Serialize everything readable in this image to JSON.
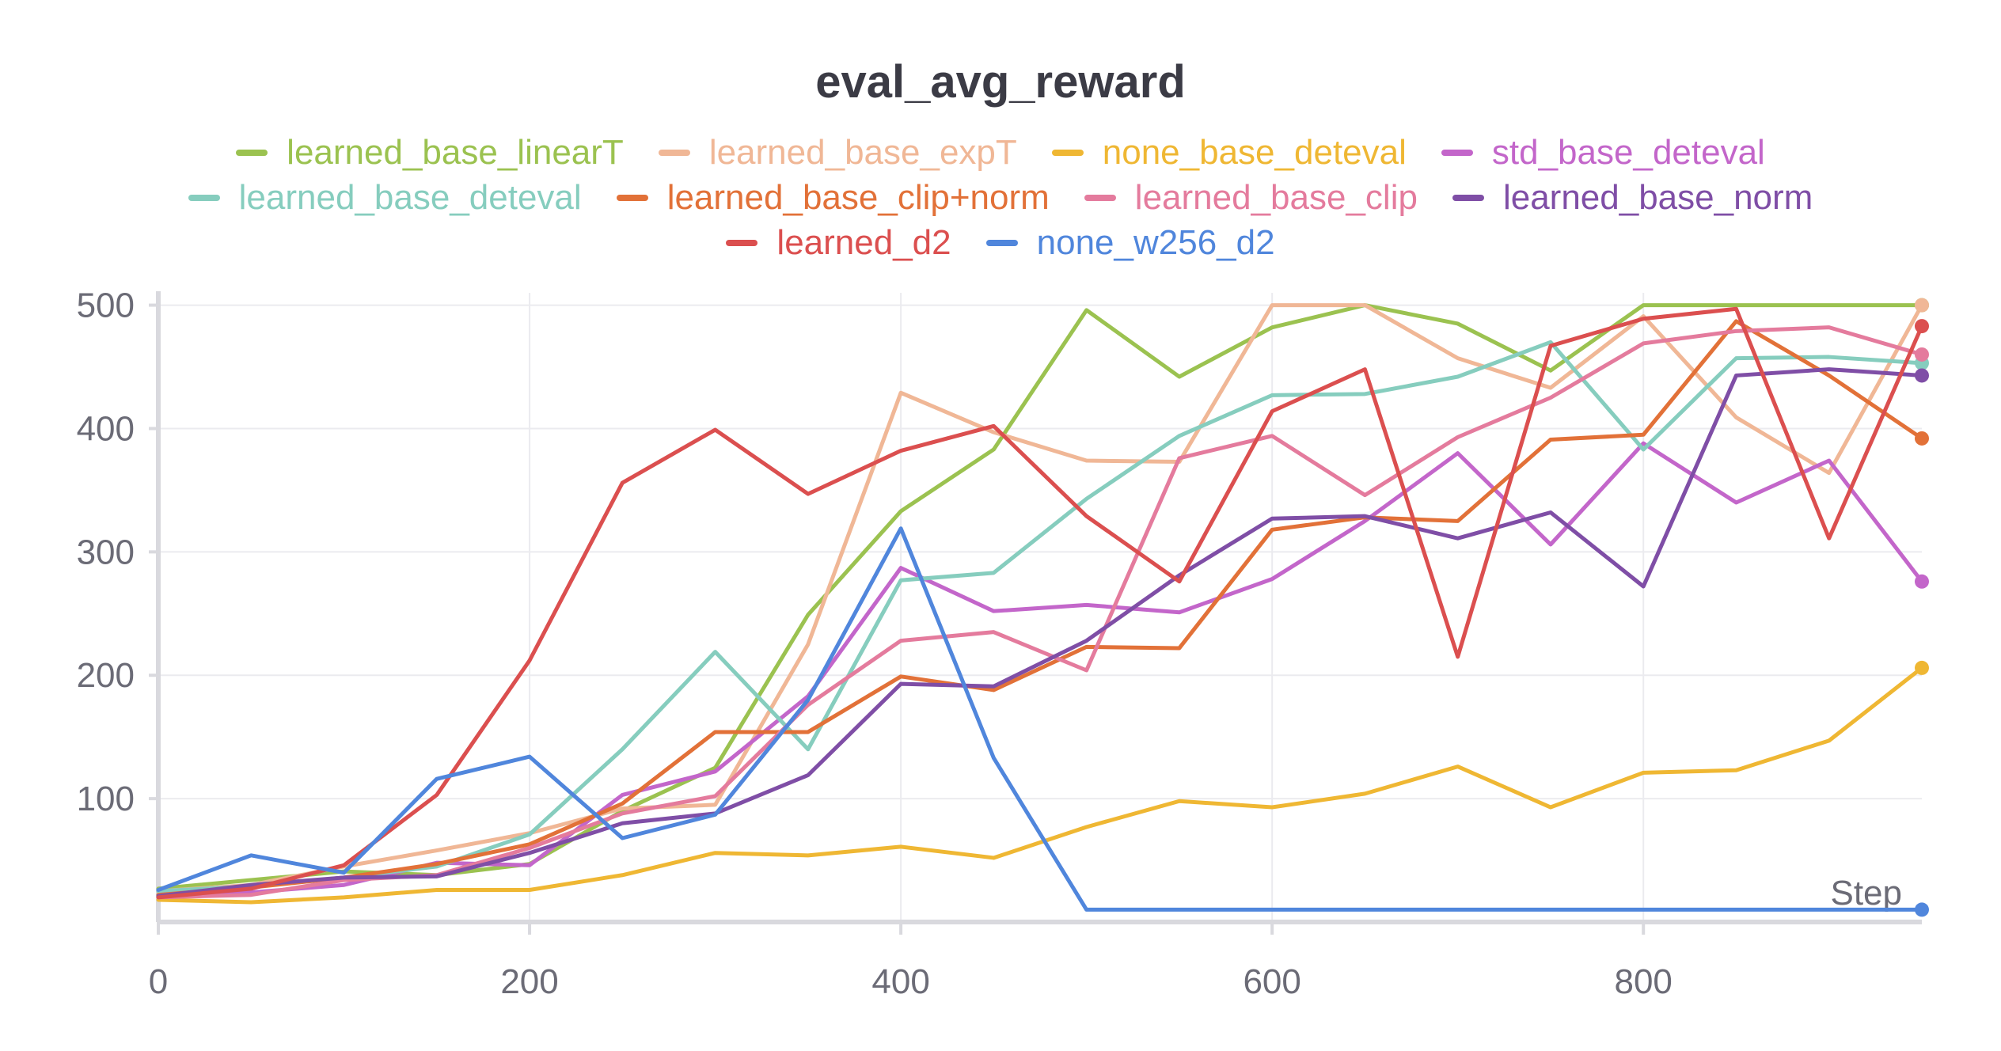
{
  "chart_data": {
    "type": "line",
    "title": "eval_avg_reward",
    "xlabel": "Step",
    "ylabel": "",
    "xlim": [
      0,
      950
    ],
    "ylim": [
      0,
      510
    ],
    "xticks": [
      0,
      200,
      400,
      600,
      800
    ],
    "yticks": [
      100,
      200,
      300,
      400,
      500
    ],
    "grid": true,
    "legend_position": "top-center",
    "x": [
      0,
      50,
      100,
      150,
      200,
      250,
      300,
      350,
      400,
      450,
      500,
      550,
      600,
      650,
      700,
      750,
      800,
      850,
      900,
      950
    ],
    "series": [
      {
        "name": "learned_base_linearT",
        "color": "#9bc250",
        "values": [
          27,
          34,
          41,
          38,
          47,
          90,
          125,
          249,
          333,
          383,
          496,
          442,
          482,
          500,
          485,
          447,
          500,
          500,
          500,
          500
        ]
      },
      {
        "name": "learned_base_expT",
        "color": "#f0b796",
        "values": [
          25,
          30,
          45,
          58,
          72,
          92,
          95,
          225,
          429,
          397,
          374,
          373,
          500,
          500,
          457,
          433,
          491,
          409,
          364,
          500
        ]
      },
      {
        "name": "none_base_deteval",
        "color": "#efb733",
        "values": [
          18,
          16,
          20,
          26,
          26,
          38,
          56,
          54,
          61,
          52,
          77,
          98,
          93,
          104,
          126,
          93,
          121,
          123,
          147,
          206
        ]
      },
      {
        "name": "std_base_deteval",
        "color": "#c366ca",
        "values": [
          22,
          24,
          30,
          48,
          46,
          103,
          122,
          183,
          287,
          252,
          257,
          251,
          278,
          325,
          380,
          306,
          388,
          340,
          374,
          276
        ]
      },
      {
        "name": "learned_base_deteval",
        "color": "#86cdbe",
        "values": [
          25,
          29,
          36,
          45,
          71,
          140,
          219,
          140,
          277,
          283,
          343,
          394,
          427,
          428,
          442,
          470,
          383,
          457,
          458,
          453
        ]
      },
      {
        "name": "learned_base_clip+norm",
        "color": "#e27138",
        "values": [
          22,
          28,
          36,
          47,
          63,
          96,
          154,
          154,
          199,
          188,
          223,
          222,
          318,
          328,
          325,
          391,
          395,
          487,
          443,
          392
        ]
      },
      {
        "name": "learned_base_clip",
        "color": "#e47b9d",
        "values": [
          20,
          22,
          34,
          38,
          60,
          88,
          102,
          176,
          228,
          235,
          204,
          376,
          394,
          346,
          393,
          425,
          469,
          479,
          482,
          460
        ]
      },
      {
        "name": "learned_base_norm",
        "color": "#7f4ea6",
        "values": [
          21,
          30,
          36,
          37,
          56,
          80,
          88,
          119,
          193,
          191,
          228,
          281,
          327,
          329,
          311,
          332,
          272,
          443,
          448,
          443
        ]
      },
      {
        "name": "learned_d2",
        "color": "#db4f4f",
        "values": [
          20,
          27,
          46,
          103,
          212,
          356,
          399,
          347,
          382,
          402,
          329,
          276,
          414,
          448,
          215,
          467,
          489,
          497,
          311,
          483
        ]
      },
      {
        "name": "none_w256_d2",
        "color": "#5086dc",
        "values": [
          26,
          54,
          40,
          116,
          134,
          68,
          87,
          180,
          319,
          133,
          10,
          10,
          10,
          10,
          10,
          10,
          10,
          10,
          10,
          10
        ]
      }
    ]
  }
}
